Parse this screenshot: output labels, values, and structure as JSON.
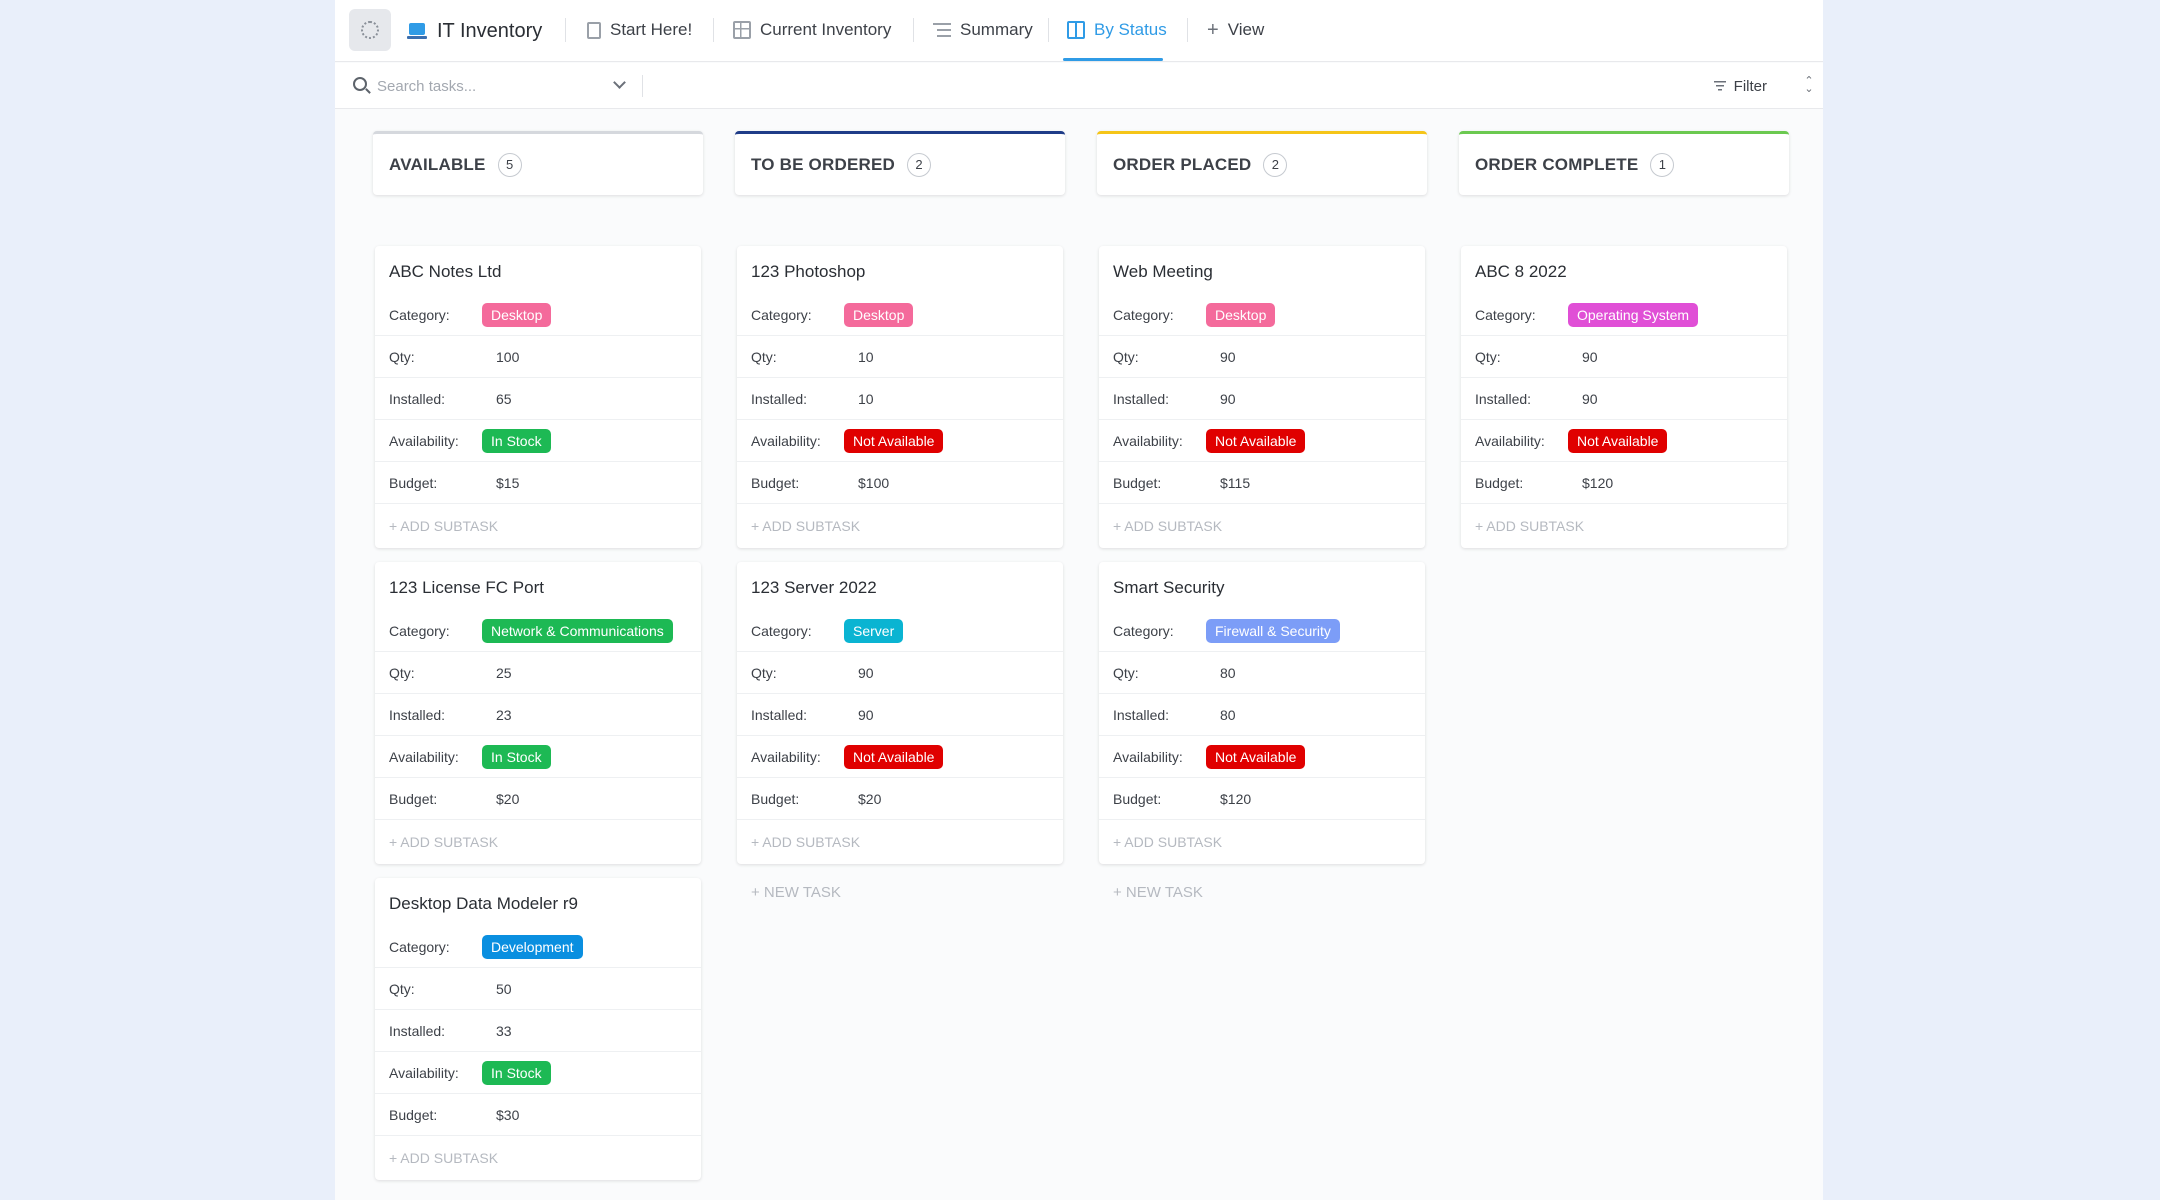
{
  "topbar": {
    "app_title": "IT Inventory",
    "tabs": [
      {
        "label": "Start Here!",
        "icon": "doc-icon"
      },
      {
        "label": "Current Inventory",
        "icon": "table-icon"
      },
      {
        "label": "Summary",
        "icon": "list-icon"
      },
      {
        "label": "By Status",
        "icon": "board-icon",
        "active": true
      },
      {
        "label": "View",
        "icon": "plus-icon"
      }
    ]
  },
  "search": {
    "placeholder": "Search tasks...",
    "value": ""
  },
  "toolbar": {
    "filter_label": "Filter"
  },
  "colors": {
    "accent": "#2f9be6",
    "available": "#d5d8dd",
    "to_be_ordered": "#1f3c88",
    "order_placed": "#f5c518",
    "order_complete": "#6bc950",
    "tag_desktop": "#f46a9b",
    "tag_os": "#e04fd6",
    "tag_network": "#1db954",
    "tag_server": "#0ab4d2",
    "tag_firewall": "#7c9df7",
    "tag_development": "#0a8fe0",
    "tag_in_stock": "#1db954",
    "tag_not_available": "#e00000"
  },
  "labels": {
    "category": "Category:",
    "qty": "Qty:",
    "installed": "Installed:",
    "availability": "Availability:",
    "budget": "Budget:",
    "add_subtask": "+ ADD SUBTASK",
    "new_task": "+ NEW TASK"
  },
  "columns": [
    {
      "title": "AVAILABLE",
      "count": "5",
      "cards": [
        {
          "title": "ABC Notes Ltd",
          "category": "Desktop",
          "qty": "100",
          "installed": "65",
          "availability": "In Stock",
          "budget": "$15"
        },
        {
          "title": "123 License FC Port",
          "category": "Network & Communications",
          "qty": "25",
          "installed": "23",
          "availability": "In Stock",
          "budget": "$20"
        },
        {
          "title": "Desktop Data Modeler r9",
          "category": "Development",
          "qty": "50",
          "installed": "33",
          "availability": "In Stock",
          "budget": "$30"
        }
      ]
    },
    {
      "title": "TO BE ORDERED",
      "count": "2",
      "cards": [
        {
          "title": "123 Photoshop",
          "category": "Desktop",
          "qty": "10",
          "installed": "10",
          "availability": "Not Available",
          "budget": "$100"
        },
        {
          "title": "123 Server 2022",
          "category": "Server",
          "qty": "90",
          "installed": "90",
          "availability": "Not Available",
          "budget": "$20"
        }
      ]
    },
    {
      "title": "ORDER PLACED",
      "count": "2",
      "cards": [
        {
          "title": "Web Meeting",
          "category": "Desktop",
          "qty": "90",
          "installed": "90",
          "availability": "Not Available",
          "budget": "$115"
        },
        {
          "title": "Smart Security",
          "category": "Firewall & Security",
          "qty": "80",
          "installed": "80",
          "availability": "Not Available",
          "budget": "$120"
        }
      ]
    },
    {
      "title": "ORDER COMPLETE",
      "count": "1",
      "cards": [
        {
          "title": "ABC 8 2022",
          "category": "Operating System",
          "qty": "90",
          "installed": "90",
          "availability": "Not Available",
          "budget": "$120"
        }
      ]
    }
  ]
}
